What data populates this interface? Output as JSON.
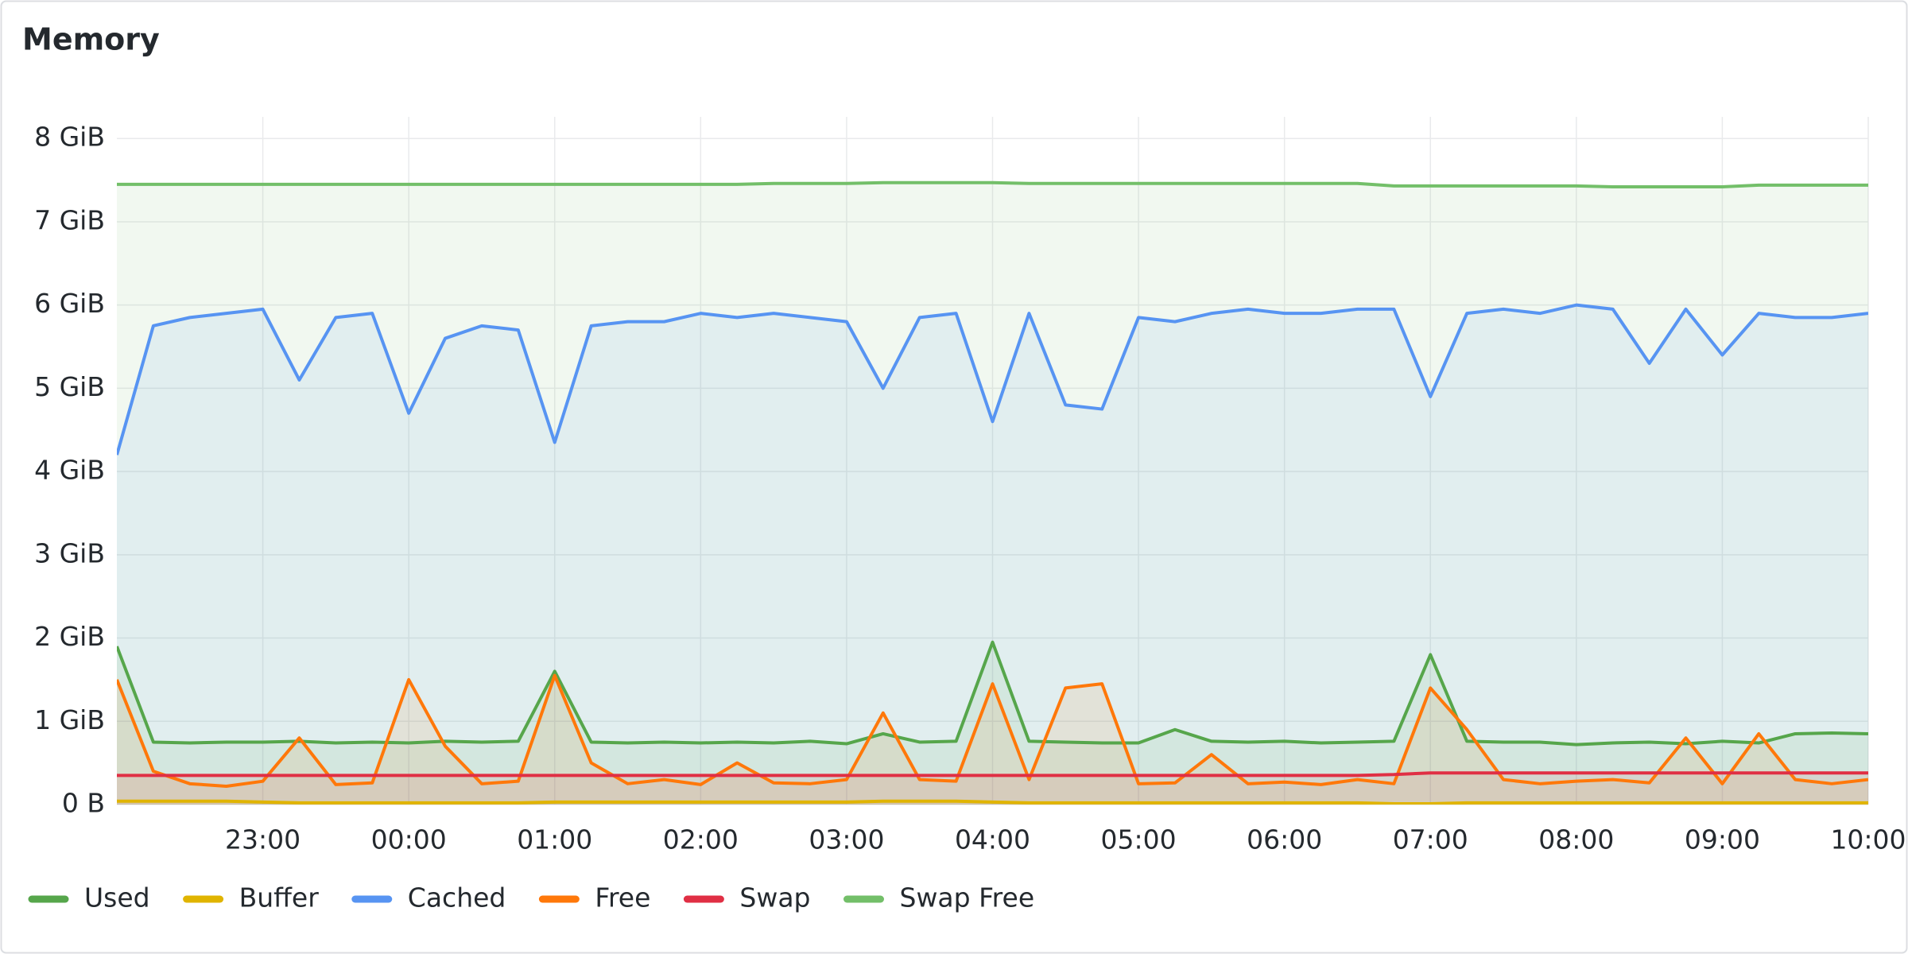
{
  "chart_data": {
    "type": "line",
    "title": "Memory",
    "x": [
      "22:00",
      "22:15",
      "22:30",
      "22:45",
      "23:00",
      "23:15",
      "23:30",
      "23:45",
      "00:00",
      "00:15",
      "00:30",
      "00:45",
      "01:00",
      "01:15",
      "01:30",
      "01:45",
      "02:00",
      "02:15",
      "02:30",
      "02:45",
      "03:00",
      "03:15",
      "03:30",
      "03:45",
      "04:00",
      "04:15",
      "04:30",
      "04:45",
      "05:00",
      "05:15",
      "05:30",
      "05:45",
      "06:00",
      "06:15",
      "06:30",
      "06:45",
      "07:00",
      "07:15",
      "07:30",
      "07:45",
      "08:00",
      "08:15",
      "08:30",
      "08:45",
      "09:00",
      "09:15",
      "09:30",
      "09:45",
      "10:00"
    ],
    "xlim": [
      "22:00",
      "10:00"
    ],
    "xticks": [
      "23:00",
      "00:00",
      "01:00",
      "02:00",
      "03:00",
      "04:00",
      "05:00",
      "06:00",
      "07:00",
      "08:00",
      "09:00",
      "10:00"
    ],
    "ylim": [
      0,
      8.26
    ],
    "yticks": [
      {
        "value": 0,
        "label": "0 B"
      },
      {
        "value": 1,
        "label": "1 GiB"
      },
      {
        "value": 2,
        "label": "2 GiB"
      },
      {
        "value": 3,
        "label": "3 GiB"
      },
      {
        "value": 4,
        "label": "4 GiB"
      },
      {
        "value": 5,
        "label": "5 GiB"
      },
      {
        "value": 6,
        "label": "6 GiB"
      },
      {
        "value": 7,
        "label": "7 GiB"
      },
      {
        "value": 8,
        "label": "8 GiB"
      }
    ],
    "grid": true,
    "legend": "bottom",
    "series": [
      {
        "name": "Used",
        "color": "#56A64B",
        "values": [
          1.9,
          0.75,
          0.74,
          0.75,
          0.75,
          0.76,
          0.74,
          0.75,
          0.74,
          0.76,
          0.75,
          0.76,
          1.6,
          0.75,
          0.74,
          0.75,
          0.74,
          0.75,
          0.74,
          0.76,
          0.73,
          0.85,
          0.75,
          0.76,
          1.95,
          0.76,
          0.75,
          0.74,
          0.74,
          0.9,
          0.76,
          0.75,
          0.76,
          0.74,
          0.75,
          0.76,
          1.8,
          0.76,
          0.75,
          0.75,
          0.72,
          0.74,
          0.75,
          0.73,
          0.76,
          0.74,
          0.85,
          0.86,
          0.85
        ]
      },
      {
        "name": "Buffer",
        "color": "#E0B400",
        "values": [
          0.04,
          0.04,
          0.04,
          0.04,
          0.03,
          0.02,
          0.02,
          0.02,
          0.02,
          0.02,
          0.02,
          0.02,
          0.03,
          0.03,
          0.03,
          0.03,
          0.03,
          0.03,
          0.03,
          0.03,
          0.03,
          0.04,
          0.04,
          0.04,
          0.03,
          0.02,
          0.02,
          0.02,
          0.02,
          0.02,
          0.02,
          0.02,
          0.02,
          0.02,
          0.02,
          0.01,
          0.01,
          0.02,
          0.02,
          0.02,
          0.02,
          0.02,
          0.02,
          0.02,
          0.02,
          0.02,
          0.02,
          0.02,
          0.02
        ]
      },
      {
        "name": "Cached",
        "color": "#5794F2",
        "values": [
          4.2,
          5.75,
          5.85,
          5.9,
          5.95,
          5.1,
          5.85,
          5.9,
          4.7,
          5.6,
          5.75,
          5.7,
          4.35,
          5.75,
          5.8,
          5.8,
          5.9,
          5.85,
          5.9,
          5.85,
          5.8,
          5.0,
          5.85,
          5.9,
          4.6,
          5.9,
          4.8,
          4.75,
          5.85,
          5.8,
          5.9,
          5.95,
          5.9,
          5.9,
          5.95,
          5.95,
          4.9,
          5.9,
          5.95,
          5.9,
          6.0,
          5.95,
          5.3,
          5.95,
          5.4,
          5.9,
          5.85,
          5.85,
          5.9
        ]
      },
      {
        "name": "Free",
        "color": "#FF780A",
        "values": [
          1.5,
          0.4,
          0.25,
          0.22,
          0.28,
          0.8,
          0.24,
          0.26,
          1.5,
          0.7,
          0.25,
          0.28,
          1.55,
          0.5,
          0.25,
          0.3,
          0.24,
          0.5,
          0.26,
          0.25,
          0.3,
          1.1,
          0.3,
          0.28,
          1.45,
          0.3,
          1.4,
          1.45,
          0.25,
          0.26,
          0.6,
          0.25,
          0.27,
          0.24,
          0.3,
          0.25,
          1.4,
          0.9,
          0.3,
          0.25,
          0.28,
          0.3,
          0.26,
          0.8,
          0.25,
          0.85,
          0.3,
          0.25,
          0.3
        ]
      },
      {
        "name": "Swap",
        "color": "#E02F44",
        "values": [
          0.35,
          0.35,
          0.35,
          0.35,
          0.35,
          0.35,
          0.35,
          0.35,
          0.35,
          0.35,
          0.35,
          0.35,
          0.35,
          0.35,
          0.35,
          0.35,
          0.35,
          0.35,
          0.35,
          0.35,
          0.35,
          0.35,
          0.35,
          0.35,
          0.35,
          0.35,
          0.35,
          0.35,
          0.35,
          0.35,
          0.35,
          0.35,
          0.35,
          0.35,
          0.35,
          0.36,
          0.38,
          0.38,
          0.38,
          0.38,
          0.38,
          0.38,
          0.38,
          0.38,
          0.38,
          0.38,
          0.38,
          0.38,
          0.38
        ]
      },
      {
        "name": "Swap Free",
        "color": "#73BF69",
        "values": [
          7.45,
          7.45,
          7.45,
          7.45,
          7.45,
          7.45,
          7.45,
          7.45,
          7.45,
          7.45,
          7.45,
          7.45,
          7.45,
          7.45,
          7.45,
          7.45,
          7.45,
          7.45,
          7.46,
          7.46,
          7.46,
          7.47,
          7.47,
          7.47,
          7.47,
          7.46,
          7.46,
          7.46,
          7.46,
          7.46,
          7.46,
          7.46,
          7.46,
          7.46,
          7.46,
          7.43,
          7.43,
          7.43,
          7.43,
          7.43,
          7.43,
          7.42,
          7.42,
          7.42,
          7.42,
          7.44,
          7.44,
          7.44,
          7.44
        ]
      }
    ]
  }
}
